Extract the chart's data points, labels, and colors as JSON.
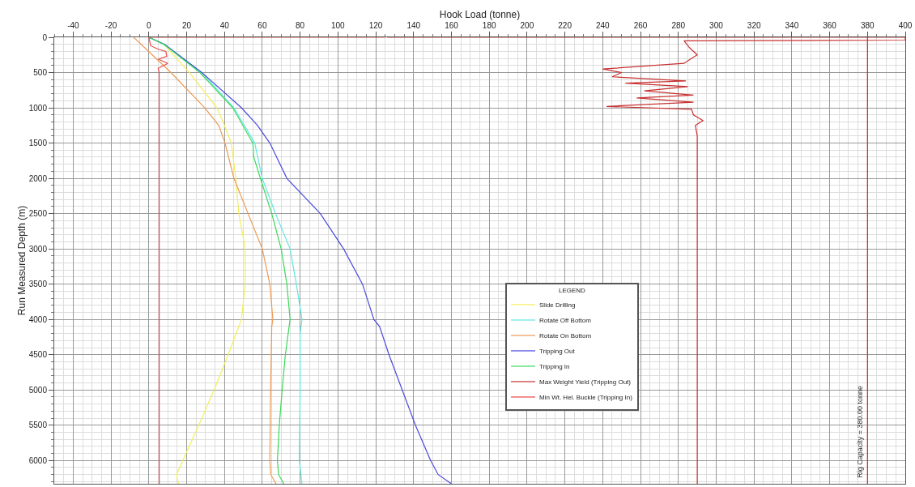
{
  "chart_data": {
    "type": "line",
    "xlabel": "Hook Load (tonne)",
    "ylabel": "Run Measured Depth (m)",
    "legend_title": "LEGEND",
    "xlim": [
      -50,
      400
    ],
    "xticks": [
      -40,
      -20,
      0,
      20,
      40,
      60,
      80,
      100,
      120,
      140,
      160,
      180,
      200,
      220,
      240,
      260,
      280,
      300,
      320,
      340,
      360,
      380,
      400
    ],
    "ylim": [
      6330,
      0
    ],
    "yticks": [
      0,
      500,
      1000,
      1500,
      2000,
      2500,
      3000,
      3500,
      4000,
      4500,
      5000,
      5500,
      6000
    ],
    "grid": true,
    "legend": "center",
    "marker": "none",
    "line_style": "solid",
    "series": [
      {
        "name": "Slide Drilling",
        "color": "#f2ee5a",
        "x": [
          0,
          8,
          21.5,
          36,
          40,
          43.6,
          46,
          47.6,
          51,
          51,
          49,
          42,
          34.5,
          26.4,
          18,
          14.6,
          15.7
        ],
        "values": [
          0,
          100,
          500,
          1000,
          1250,
          1500,
          2000,
          2500,
          3000,
          3500,
          4000,
          4500,
          5000,
          5500,
          6000,
          6200,
          6330
        ]
      },
      {
        "name": "Rotate Off Bottom",
        "color": "#5ee8e0",
        "x": [
          0,
          8,
          28,
          45,
          56,
          60,
          67,
          74.7,
          78,
          81,
          80,
          80,
          79.6,
          81
        ],
        "values": [
          0,
          100,
          500,
          1000,
          1500,
          2000,
          2500,
          3000,
          3500,
          4000,
          4200,
          5000,
          6000,
          6330
        ]
      },
      {
        "name": "Rotate On Bottom",
        "color": "#eb9a55",
        "x": [
          -8,
          11.7,
          29.6,
          37,
          40.3,
          45,
          52.5,
          60,
          64,
          65.6,
          65,
          64.4,
          64,
          64.5,
          67.3
        ],
        "values": [
          0,
          500,
          1000,
          1250,
          1500,
          2000,
          2500,
          3000,
          3500,
          4000,
          4100,
          5000,
          6000,
          6200,
          6330
        ]
      },
      {
        "name": "Tripping Out",
        "color": "#4a4ae0",
        "x": [
          0,
          8.4,
          28,
          49,
          57.5,
          64,
          73,
          90.7,
          103,
          113,
          119,
          122,
          127,
          134,
          141,
          149,
          153,
          160
        ],
        "values": [
          0,
          100,
          500,
          1000,
          1250,
          1500,
          2000,
          2500,
          3000,
          3500,
          4000,
          4100,
          4500,
          5000,
          5500,
          6000,
          6200,
          6330
        ]
      },
      {
        "name": "Tripping In",
        "color": "#3ad85a",
        "x": [
          0,
          8,
          27,
          44.4,
          55,
          55.5,
          59,
          65,
          70,
          73,
          74.7,
          72.2,
          70.5,
          69,
          68,
          68.6,
          71.4
        ],
        "values": [
          0,
          100,
          500,
          1000,
          1500,
          1700,
          2000,
          2500,
          3000,
          3500,
          4000,
          4500,
          5000,
          5500,
          6000,
          6200,
          6330
        ]
      },
      {
        "name": "Max Weight Yield (Tripping Out)",
        "color": "#c83232",
        "x": [
          126,
          400,
          400,
          283,
          286,
          290,
          287,
          283,
          240,
          250,
          245,
          284,
          252,
          285,
          262,
          288,
          258,
          288,
          242,
          287,
          288,
          293,
          289,
          290,
          290
        ],
        "values": [
          0,
          0,
          40,
          50,
          150,
          250,
          300,
          370,
          450,
          500,
          560,
          620,
          650,
          700,
          760,
          820,
          860,
          920,
          980,
          1020,
          1100,
          1180,
          1250,
          1400,
          6330
        ]
      },
      {
        "name": "Min Wt. Hel. Buckle (Tripping In)",
        "color": "#e84848",
        "x": [
          125,
          0,
          1,
          5,
          9,
          9.5,
          5,
          10,
          5,
          5.5,
          5.5
        ],
        "values": [
          0,
          0,
          120,
          170,
          200,
          270,
          310,
          370,
          440,
          500,
          6330
        ]
      }
    ],
    "ref_lines": [
      {
        "axis": "x",
        "value": 380,
        "label": "Rig Capacity = 380.00 tonne",
        "color": "#c83232",
        "line_style": "solid"
      }
    ]
  }
}
